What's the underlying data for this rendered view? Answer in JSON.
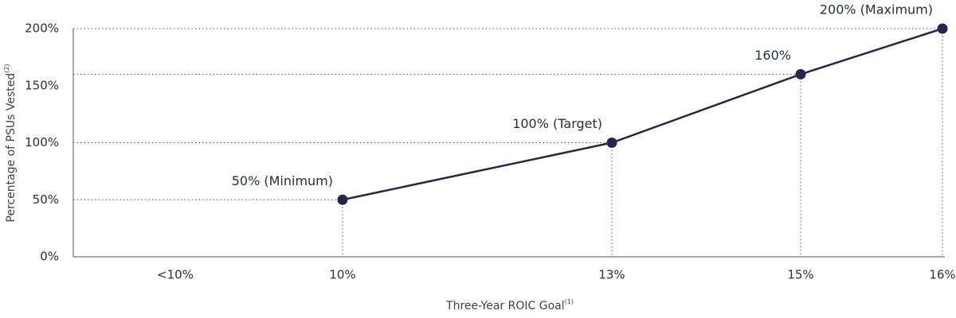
{
  "chart_data": {
    "type": "line",
    "x_label": "Three-Year ROIC Goal",
    "x_label_note": "(1)",
    "y_label": "Percentage of PSUs Vested",
    "y_label_note": "(2)",
    "categories": [
      "<10%",
      "10%",
      "13%",
      "15%",
      "16%"
    ],
    "values": [
      null,
      50,
      100,
      160,
      200
    ],
    "value_labels": [
      null,
      "50% (Minimum)",
      "100% (Target)",
      "160%",
      "200% (Maximum)"
    ],
    "color": "#23264f",
    "ylim": [
      0,
      200
    ],
    "yticks": [
      {
        "value": 0,
        "label": "0%"
      },
      {
        "value": 50,
        "label": "50%"
      },
      {
        "value": 100,
        "label": "100%"
      },
      {
        "value": 150,
        "label": "150%"
      },
      {
        "value": 200,
        "label": "200%"
      }
    ]
  }
}
